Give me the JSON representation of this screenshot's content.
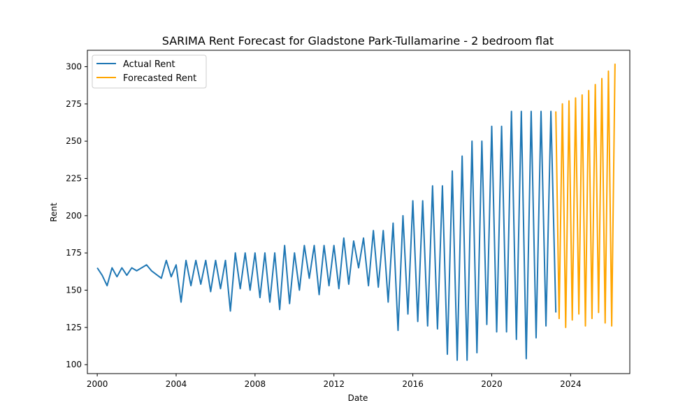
{
  "chart_data": {
    "type": "line",
    "title": "SARIMA Rent Forecast for Gladstone Park-Tullamarine - 2 bedroom flat",
    "xlabel": "Date",
    "ylabel": "Rent",
    "xlim": [
      1999.5,
      2027.0
    ],
    "ylim": [
      94,
      311
    ],
    "xticks": [
      2000,
      2004,
      2008,
      2012,
      2016,
      2020,
      2024
    ],
    "yticks": [
      100,
      125,
      150,
      175,
      200,
      225,
      250,
      275,
      300
    ],
    "legend": "top-left",
    "grid": false,
    "series": [
      {
        "name": "Actual Rent",
        "color": "#1f77b4",
        "x": [
          2000.0,
          2000.25,
          2000.5,
          2000.75,
          2001.0,
          2001.25,
          2001.5,
          2001.75,
          2002.0,
          2002.5,
          2002.75,
          2003.25,
          2003.5,
          2003.75,
          2004.0,
          2004.25,
          2004.5,
          2004.75,
          2005.0,
          2005.25,
          2005.5,
          2005.75,
          2006.0,
          2006.25,
          2006.5,
          2006.75,
          2007.0,
          2007.25,
          2007.5,
          2007.75,
          2008.0,
          2008.25,
          2008.5,
          2008.75,
          2009.0,
          2009.25,
          2009.5,
          2009.75,
          2010.0,
          2010.25,
          2010.5,
          2010.75,
          2011.0,
          2011.25,
          2011.5,
          2011.75,
          2012.0,
          2012.25,
          2012.5,
          2012.75,
          2013.0,
          2013.25,
          2013.5,
          2013.75,
          2014.0,
          2014.25,
          2014.5,
          2014.75,
          2015.0,
          2015.25,
          2015.5,
          2015.75,
          2016.0,
          2016.25,
          2016.5,
          2016.75,
          2017.0,
          2017.25,
          2017.5,
          2017.75,
          2018.0,
          2018.25,
          2018.5,
          2018.75,
          2019.0,
          2019.25,
          2019.5,
          2019.75,
          2020.0,
          2020.25,
          2020.5,
          2020.75,
          2021.0,
          2021.25,
          2021.5,
          2021.75,
          2022.0,
          2022.25,
          2022.5,
          2022.75,
          2023.0,
          2023.25
        ],
        "y": [
          165,
          160,
          153,
          165,
          159,
          165,
          160,
          165,
          163,
          167,
          163,
          158,
          170,
          159,
          167,
          142,
          170,
          153,
          170,
          154,
          170,
          149,
          170,
          151,
          170,
          136,
          175,
          151,
          175,
          150,
          175,
          145,
          175,
          142,
          175,
          137,
          180,
          141,
          175,
          150,
          180,
          158,
          180,
          147,
          180,
          153,
          180,
          151,
          185,
          154,
          183,
          165,
          185,
          153,
          190,
          152,
          190,
          142,
          195,
          123,
          200,
          134,
          210,
          129,
          210,
          126,
          220,
          124,
          220,
          107,
          230,
          103,
          240,
          103,
          250,
          108,
          250,
          127,
          260,
          122,
          260,
          122,
          270,
          117,
          270,
          104,
          270,
          118,
          270,
          126,
          270,
          135
        ]
      },
      {
        "name": "Forecasted Rent",
        "color": "#ffa500",
        "x": [
          2023.25,
          2023.417,
          2023.583,
          2023.75,
          2023.917,
          2024.083,
          2024.25,
          2024.417,
          2024.583,
          2024.75,
          2024.917,
          2025.083,
          2025.25,
          2025.417,
          2025.583,
          2025.75,
          2025.917,
          2026.083,
          2026.25
        ],
        "y": [
          270,
          131,
          275,
          125,
          277,
          130,
          279,
          134,
          281,
          126,
          284,
          131,
          288,
          135,
          292,
          128,
          297,
          126,
          302
        ]
      }
    ]
  }
}
